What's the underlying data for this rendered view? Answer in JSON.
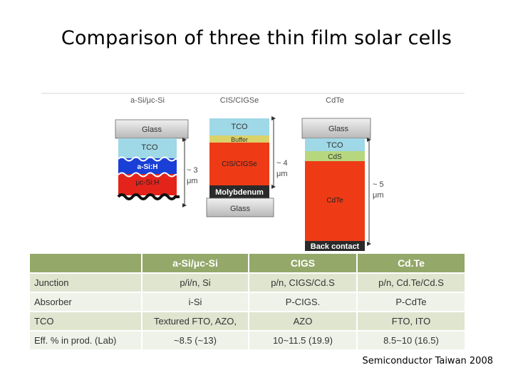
{
  "slide": {
    "title": "Comparison of three thin film solar cells",
    "source": "Semiconductor Taiwan 2008"
  },
  "diagram": {
    "asi": {
      "header": "a-Si/μc-Si",
      "layers": {
        "glass": "Glass",
        "tco": "TCO",
        "asih": "a-Si:H",
        "ucsih": "μc-Si:H"
      },
      "thickness": [
        "~ 3",
        "μm"
      ]
    },
    "cigs": {
      "header": "CIS/CIGSe",
      "layers": {
        "tco": "TCO",
        "buffer": "Buffer",
        "absorber": "CIS/CIGSe",
        "moly": "Molybdenum",
        "glass": "Glass"
      },
      "thickness": [
        "~ 4",
        "μm"
      ]
    },
    "cdte": {
      "header": "CdTe",
      "layers": {
        "glass": "Glass",
        "tco": "TCO",
        "cds": "CdS",
        "absorber": "CdTe",
        "back": "Back contact"
      },
      "thickness": [
        "~ 5",
        "μm"
      ]
    },
    "colors": {
      "glass": "#d4d4d4",
      "tco": "#9fd8e6",
      "absorber": "#ee3b16",
      "moly": "#2a2a2a",
      "buffer": "#d9d36a",
      "cds": "#b7d77e"
    }
  },
  "table": {
    "headers": [
      "",
      "a-Si/μc-Si",
      "CIGS",
      "Cd.Te"
    ],
    "rows": [
      [
        "Junction",
        "p/i/n, Si",
        "p/n, CIGS/Cd.S",
        "p/n, Cd.Te/Cd.S"
      ],
      [
        "Absorber",
        "i-Si",
        "P-CIGS.",
        "P-CdTe"
      ],
      [
        "TCO",
        "Textured FTO, AZO,",
        "AZO",
        "FTO, ITO"
      ],
      [
        "Eff. %  in prod. (Lab)",
        "~8.5 (~13)",
        "10~11.5 (19.9)",
        "8.5~10 (16.5)"
      ]
    ]
  }
}
